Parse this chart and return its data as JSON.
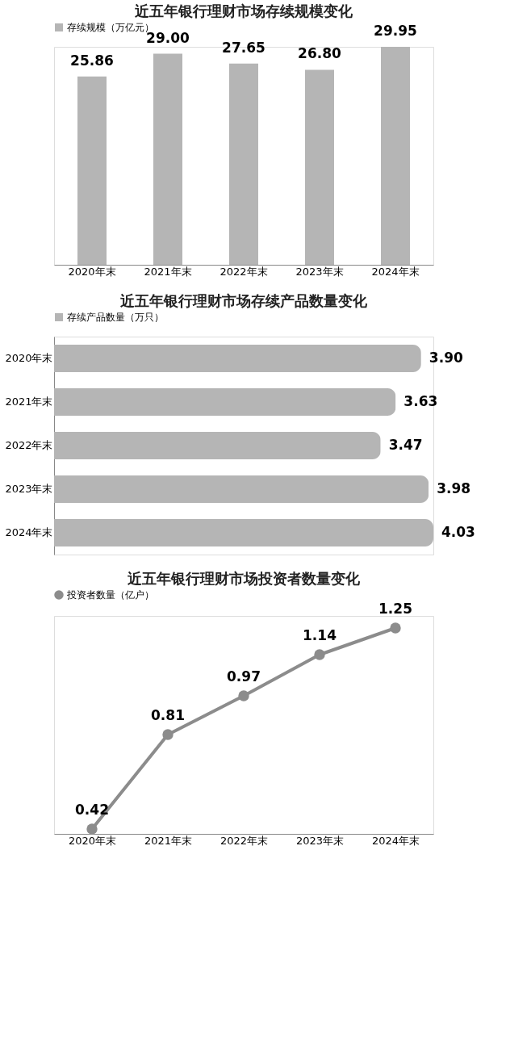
{
  "chart_data": [
    {
      "type": "bar",
      "title": "近五年银行理财市场存续规模变化",
      "categories": [
        "2020年末",
        "2021年末",
        "2022年末",
        "2023年末",
        "2024年末"
      ],
      "series": [
        {
          "name": "存续规模（万亿元）",
          "color": "#b5b5b5",
          "values": [
            25.86,
            29.0,
            27.65,
            26.8,
            29.95
          ],
          "value_labels": [
            "25.86",
            "29.00",
            "27.65",
            "26.80",
            "29.95"
          ]
        }
      ],
      "legend": "top"
    },
    {
      "type": "bar",
      "orientation": "horizontal",
      "title": "近五年银行理财市场存续产品数量变化",
      "categories": [
        "2020年末",
        "2021年末",
        "2022年末",
        "2023年末",
        "2024年末"
      ],
      "series": [
        {
          "name": "存续产品数量（万只）",
          "color": "#b5b5b5",
          "values": [
            3.9,
            3.63,
            3.47,
            3.98,
            4.03
          ],
          "value_labels": [
            "3.90",
            "3.63",
            "3.47",
            "3.98",
            "4.03"
          ]
        }
      ],
      "legend": "top"
    },
    {
      "type": "line",
      "title": "近五年银行理财市场投资者数量变化",
      "categories": [
        "2020年末",
        "2021年末",
        "2022年末",
        "2023年末",
        "2024年末"
      ],
      "series": [
        {
          "name": "投资者数量（亿户）",
          "color": "#8c8c8c",
          "values": [
            0.42,
            0.81,
            0.97,
            1.14,
            1.25
          ],
          "value_labels": [
            "0.42",
            "0.81",
            "0.97",
            "1.14",
            "1.25"
          ]
        }
      ],
      "legend": "top",
      "marker": "circle"
    }
  ]
}
